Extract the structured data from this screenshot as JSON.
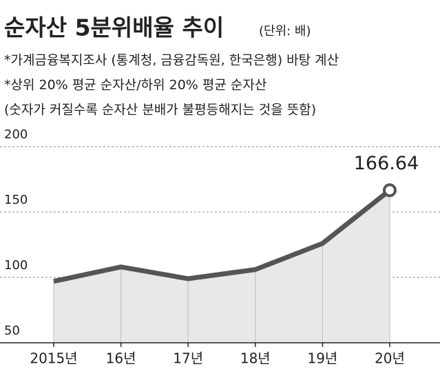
{
  "chart_data": {
    "type": "line",
    "title": "순자산 5분위배율 추이",
    "subtitle": "(단위: 배)",
    "notes": [
      "*가계금융복지조사 (통계청, 금융감독원, 한국은행) 바탕 계산",
      "*상위 20% 평균 순자산/하위 20% 평균 순자산",
      "(숫자가 커질수록 순자산 분배가 불평등해지는 것을 뜻함)"
    ],
    "categories": [
      "2015년",
      "16년",
      "17년",
      "18년",
      "19년",
      "20년"
    ],
    "values": [
      97,
      108,
      99,
      106,
      126,
      166.64
    ],
    "labeled_point": 5,
    "color": "#555555",
    "area_color": "#e8e8e8",
    "ylim": [
      50,
      200
    ],
    "yticks": [
      50,
      100,
      150,
      200
    ],
    "grid": true
  }
}
